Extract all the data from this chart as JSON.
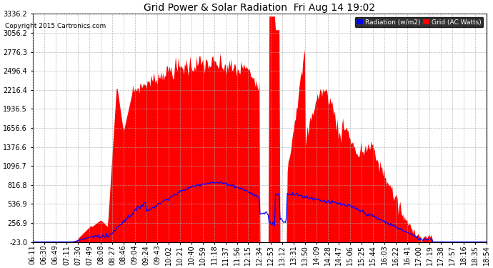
{
  "title": "Grid Power & Solar Radiation  Fri Aug 14 19:02",
  "copyright": "Copyright 2015 Cartronics.com",
  "legend_labels": [
    "Radiation (w/m2)",
    "Grid (AC Watts)"
  ],
  "legend_colors": [
    "#0000ff",
    "#ff0000"
  ],
  "bg_color": "#ffffff",
  "plot_bg_color": "#ffffff",
  "grid_color": "#aaaaaa",
  "fill_color": "#ff0000",
  "line_color": "#0000ff",
  "yticks": [
    -23.0,
    256.9,
    536.9,
    816.8,
    1096.7,
    1376.6,
    1656.6,
    1936.5,
    2216.4,
    2496.4,
    2776.3,
    3056.2,
    3336.2
  ],
  "ylim": [
    -23.0,
    3336.2
  ],
  "xtick_labels": [
    "06:11",
    "06:30",
    "06:49",
    "07:11",
    "07:30",
    "07:49",
    "08:08",
    "08:27",
    "08:46",
    "09:04",
    "09:24",
    "09:43",
    "10:02",
    "10:21",
    "10:40",
    "10:59",
    "11:18",
    "11:37",
    "11:56",
    "12:15",
    "12:34",
    "12:53",
    "13:12",
    "13:31",
    "13:50",
    "14:09",
    "14:28",
    "14:47",
    "15:06",
    "15:25",
    "15:44",
    "16:03",
    "16:22",
    "16:41",
    "17:00",
    "17:19",
    "17:38",
    "17:57",
    "18:16",
    "18:35",
    "18:54"
  ]
}
